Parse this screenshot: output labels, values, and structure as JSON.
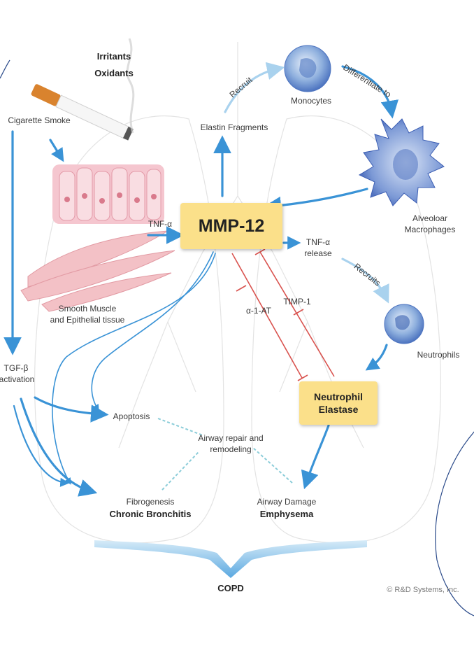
{
  "inputs": {
    "irritants": "Irritants",
    "oxidants": "Oxidants",
    "cigarette_smoke": "Cigarette Smoke"
  },
  "tissue": {
    "line1": "Smooth Muscle",
    "line2": "and Epithelial tissue"
  },
  "tgf": {
    "line1": "TGF-β",
    "line2": "activation"
  },
  "center": {
    "mmp12": "MMP-12",
    "tnf_in": "TNF-α",
    "tnf_release_line1": "TNF-α",
    "tnf_release_line2": "release",
    "timp1": "TIMP-1",
    "a1at": "α-1-AT"
  },
  "cells": {
    "elastin": "Elastin Fragments",
    "monocytes": "Monocytes",
    "macrophages_line1": "Alveoloar",
    "macrophages_line2": "Macrophages",
    "neutrophils": "Neutrophils"
  },
  "arrows": {
    "recruit": "Recruit",
    "differentiate": "Differentiate to",
    "recruits": "Recruits"
  },
  "elastase": {
    "line1": "Neutrophil",
    "line2": "Elastase"
  },
  "outcomes": {
    "apoptosis": "Apoptosis",
    "airway_repair_line1": "Airway repair and",
    "airway_repair_line2": "remodeling",
    "fibrogenesis": "Fibrogenesis",
    "chronic_bronchitis": "Chronic Bronchitis",
    "airway_damage": "Airway Damage",
    "emphysema": "Emphysema",
    "copd": "COPD"
  },
  "credit": "© R&D Systems, Inc.",
  "colors": {
    "arrow_blue": "#3a93d6",
    "inhibit_red": "#d9534f",
    "box_yellow": "#fbe08a"
  }
}
